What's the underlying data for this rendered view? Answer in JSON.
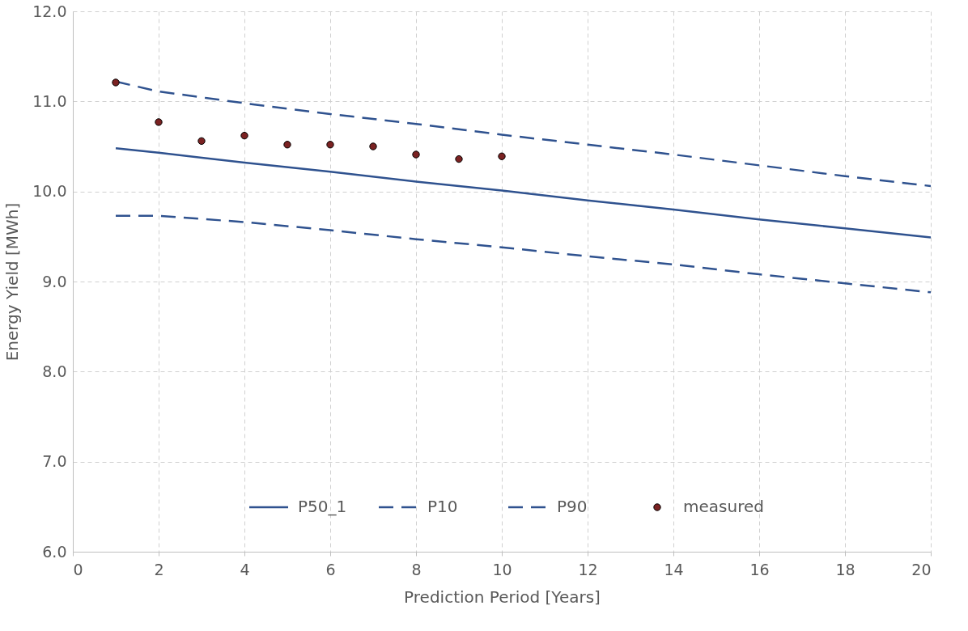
{
  "chart_data": {
    "type": "line",
    "xlabel": "Prediction Period [Years]",
    "ylabel": "Energy Yield [MWh]",
    "xlim": [
      0,
      20
    ],
    "xticks": [
      0,
      2,
      4,
      6,
      8,
      10,
      12,
      14,
      16,
      18,
      20
    ],
    "ylim": [
      6.0,
      12.0
    ],
    "yticks": [
      {
        "value": 6,
        "label": "6.0"
      },
      {
        "value": 7,
        "label": "7.0"
      },
      {
        "value": 8,
        "label": "8.0"
      },
      {
        "value": 9,
        "label": "9.0"
      },
      {
        "value": 10,
        "label": "10.0"
      },
      {
        "value": 11,
        "label": "11.0"
      },
      {
        "value": 12,
        "label": "12.0"
      }
    ],
    "grid": true,
    "legend": "bottom",
    "series": [
      {
        "name": "P50_1",
        "color": "#2f528f",
        "line_style": "solid",
        "x": [
          1,
          2,
          4,
          6,
          8,
          10,
          12,
          14,
          16,
          18,
          20
        ],
        "values": [
          10.48,
          10.43,
          10.32,
          10.22,
          10.11,
          10.01,
          9.9,
          9.8,
          9.69,
          9.59,
          9.49
        ]
      },
      {
        "name": "P10",
        "color": "#2f528f",
        "line_style": "dashed",
        "x": [
          1,
          2,
          4,
          6,
          8,
          10,
          12,
          14,
          16,
          18,
          20
        ],
        "values": [
          11.22,
          11.11,
          10.98,
          10.86,
          10.75,
          10.63,
          10.52,
          10.41,
          10.29,
          10.17,
          10.06
        ]
      },
      {
        "name": "P90",
        "color": "#2f528f",
        "line_style": "dashed",
        "x": [
          1,
          2,
          4,
          6,
          8,
          10,
          12,
          14,
          16,
          18,
          20
        ],
        "values": [
          9.73,
          9.73,
          9.66,
          9.57,
          9.47,
          9.38,
          9.28,
          9.19,
          9.08,
          8.98,
          8.88
        ]
      },
      {
        "name": "measured",
        "type": "scatter",
        "color": "#7b2222",
        "marker": "circle",
        "x": [
          1,
          2,
          3,
          4,
          5,
          6,
          7,
          8,
          9,
          10
        ],
        "values": [
          11.21,
          10.77,
          10.56,
          10.62,
          10.52,
          10.52,
          10.5,
          10.41,
          10.36,
          10.39
        ]
      }
    ]
  }
}
